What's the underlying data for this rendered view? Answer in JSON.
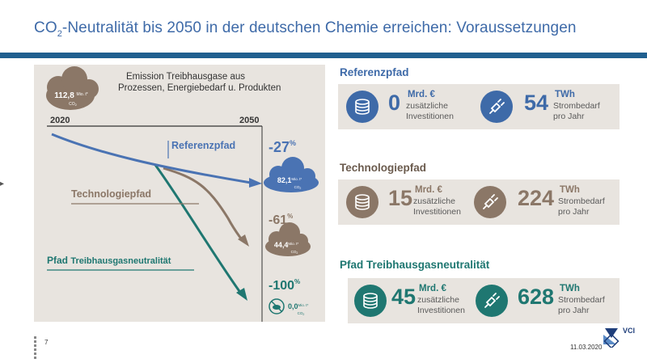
{
  "title_prefix": "CO",
  "title_sub": "2",
  "title_rest": "-Neutralität bis 2050 in der deutschen Chemie erreichen: Voraussetzungen",
  "footer": {
    "page": "7",
    "date": "11.03.2020",
    "logo": "VCI"
  },
  "chart_data": {
    "type": "line",
    "title": "Emission Treibhausgase aus Prozessen, Energiebedarf u. Produkten",
    "x_start": "2020",
    "x_end": "2050",
    "start_value": "112,8",
    "unit_line1": "Mio. t*",
    "unit_line2": "CO",
    "unit_sub": "2",
    "series": [
      {
        "name": "Referenzpfad",
        "color": "#4a73b3",
        "end_value": "82,1",
        "change": "-27",
        "pct": "%"
      },
      {
        "name": "Technologiepfad",
        "color": "#8b7767",
        "end_value": "44,4",
        "change": "-61",
        "pct": "%"
      },
      {
        "name_prefix": "Pfad",
        "name": "Treibhausgasneutralität",
        "color": "#1f7771",
        "end_value": "0,0",
        "change": "-100",
        "pct": "%"
      }
    ],
    "values": [
      112.8,
      82.1,
      44.4,
      0.0
    ]
  },
  "paths": [
    {
      "title": "Referenzpfad",
      "color": "#3e6aa8",
      "invest_value": "0",
      "invest_unit": "Mrd. €",
      "invest_desc1": "zusätzliche",
      "invest_desc2": "Investitionen",
      "power_value": "54",
      "power_unit": "TWh",
      "power_desc1": "Strombedarf",
      "power_desc2": "pro Jahr"
    },
    {
      "title": "Technologiepfad",
      "color": "#8b7767",
      "invest_value": "15",
      "invest_unit": "Mrd. €",
      "invest_desc1": "zusätzliche",
      "invest_desc2": "Investitionen",
      "power_value": "224",
      "power_unit": "TWh",
      "power_desc1": "Strombedarf",
      "power_desc2": "pro Jahr"
    },
    {
      "title": "Pfad Treibhausgasneutralität",
      "color": "#1f7771",
      "invest_value": "45",
      "invest_unit": "Mrd. €",
      "invest_desc1": "zusätzliche",
      "invest_desc2": "Investitionen",
      "power_value": "628",
      "power_unit": "TWh",
      "power_desc1": "Strombedarf",
      "power_desc2": "pro Jahr"
    }
  ],
  "icons": {
    "invest": "coin-stack-icon",
    "power": "plug-icon"
  }
}
